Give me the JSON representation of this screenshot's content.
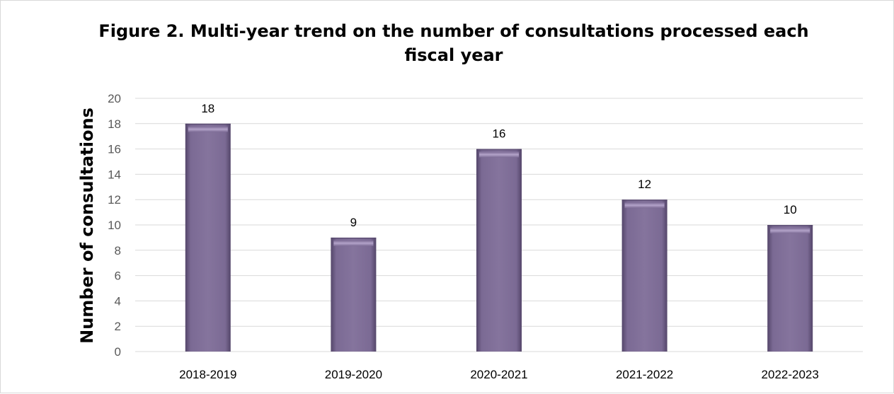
{
  "chart_data": {
    "type": "bar",
    "title": "Figure 2. Multi-year trend on the number of consultations processed each fiscal year",
    "xlabel": "",
    "ylabel": "Number of consultations",
    "categories": [
      "2018-2019",
      "2019-2020",
      "2020-2021",
      "2021-2022",
      "2022-2023"
    ],
    "values": [
      18,
      9,
      16,
      12,
      10
    ],
    "ylim": [
      0,
      20
    ],
    "ytick_step": 2,
    "grid": true,
    "legend": "none",
    "data_labels": true,
    "bar_color": "#7b6a94",
    "bar_highlight": "#a896bf",
    "bar_shadow": "#54466a",
    "gridline_color": "#d9d9d9"
  }
}
